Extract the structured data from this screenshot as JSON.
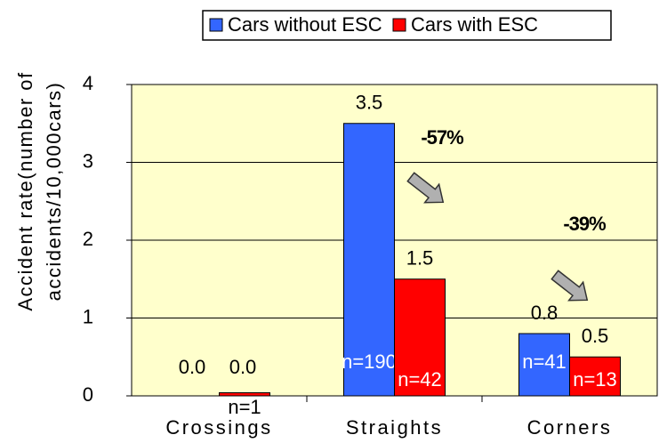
{
  "chart_data": {
    "type": "bar",
    "categories": [
      "Crossings",
      "Straights",
      "Corners"
    ],
    "series": [
      {
        "name": "Cars without ESC",
        "color": "#3366ff",
        "values": [
          0,
          3.5,
          0.8
        ],
        "value_labels": [
          "0.0",
          "3.5",
          "0.8"
        ],
        "n_labels": [
          null,
          "n=190",
          "n=41"
        ]
      },
      {
        "name": "Cars with ESC",
        "color": "#ff0000",
        "values": [
          0.04,
          1.5,
          0.5
        ],
        "value_labels": [
          "0.0",
          "1.5",
          "0.5"
        ],
        "n_labels": [
          "n=1",
          "n=42",
          "n=13"
        ]
      }
    ],
    "ylabel": [
      "Accident rate(number of",
      "accidents/10,000cars)"
    ],
    "ylim": [
      0,
      4
    ],
    "yticks": [
      0,
      1,
      2,
      3,
      4
    ],
    "grid": true,
    "legend": "top",
    "annotations": [
      {
        "text": "-57%"
      },
      {
        "text": "-39%"
      }
    ]
  }
}
